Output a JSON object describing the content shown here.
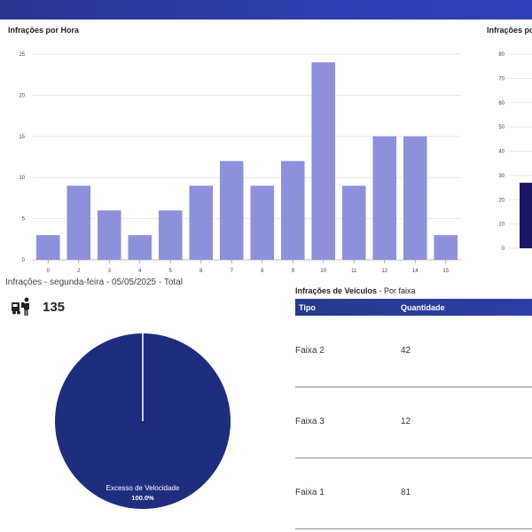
{
  "header": {
    "bar_color": "#2e3aa6"
  },
  "chart_hourly": {
    "title": "Infrações por Hora",
    "chart_data": {
      "type": "bar",
      "categories": [
        "0",
        "2",
        "3",
        "4",
        "5",
        "6",
        "7",
        "8",
        "9",
        "10",
        "11",
        "12",
        "14",
        "15"
      ],
      "values": [
        3,
        9,
        6,
        3,
        6,
        9,
        12,
        9,
        12,
        24,
        9,
        15,
        15,
        3
      ],
      "ylim": [
        0,
        25
      ],
      "yticks": [
        0,
        5,
        10,
        15,
        20,
        25
      ],
      "grid": true,
      "bar_color": "#8d90db"
    }
  },
  "chart_second": {
    "title": "Infrações po",
    "chart_data": {
      "type": "bar",
      "ylim": [
        0,
        80
      ],
      "yticks": [
        0,
        10,
        20,
        30,
        40,
        50,
        60,
        70,
        80
      ],
      "values": [
        27
      ],
      "bar_color": "#1a1764",
      "grid": true
    }
  },
  "summary": {
    "subtitle": "Infrações - segunda-feira - 05/05/2025 - Total",
    "icon": "person-with-vehicle-icon",
    "total": "135"
  },
  "pie": {
    "chart_data": {
      "type": "pie",
      "labels": [
        "Excesso de Velocidade"
      ],
      "values": [
        100.0
      ],
      "percent_labels": [
        "100.0%"
      ],
      "colors": [
        "#1f2d7e"
      ]
    }
  },
  "table": {
    "title_bold": "Infrações de Veículos",
    "title_rest": " - Por faixa",
    "columns": [
      "Tipo",
      "Quantidade"
    ],
    "rows": [
      {
        "tipo": "Faixa 2",
        "quantidade": "42"
      },
      {
        "tipo": "Faixa 3",
        "quantidade": "12"
      },
      {
        "tipo": "Faixa 1",
        "quantidade": "81"
      }
    ]
  }
}
